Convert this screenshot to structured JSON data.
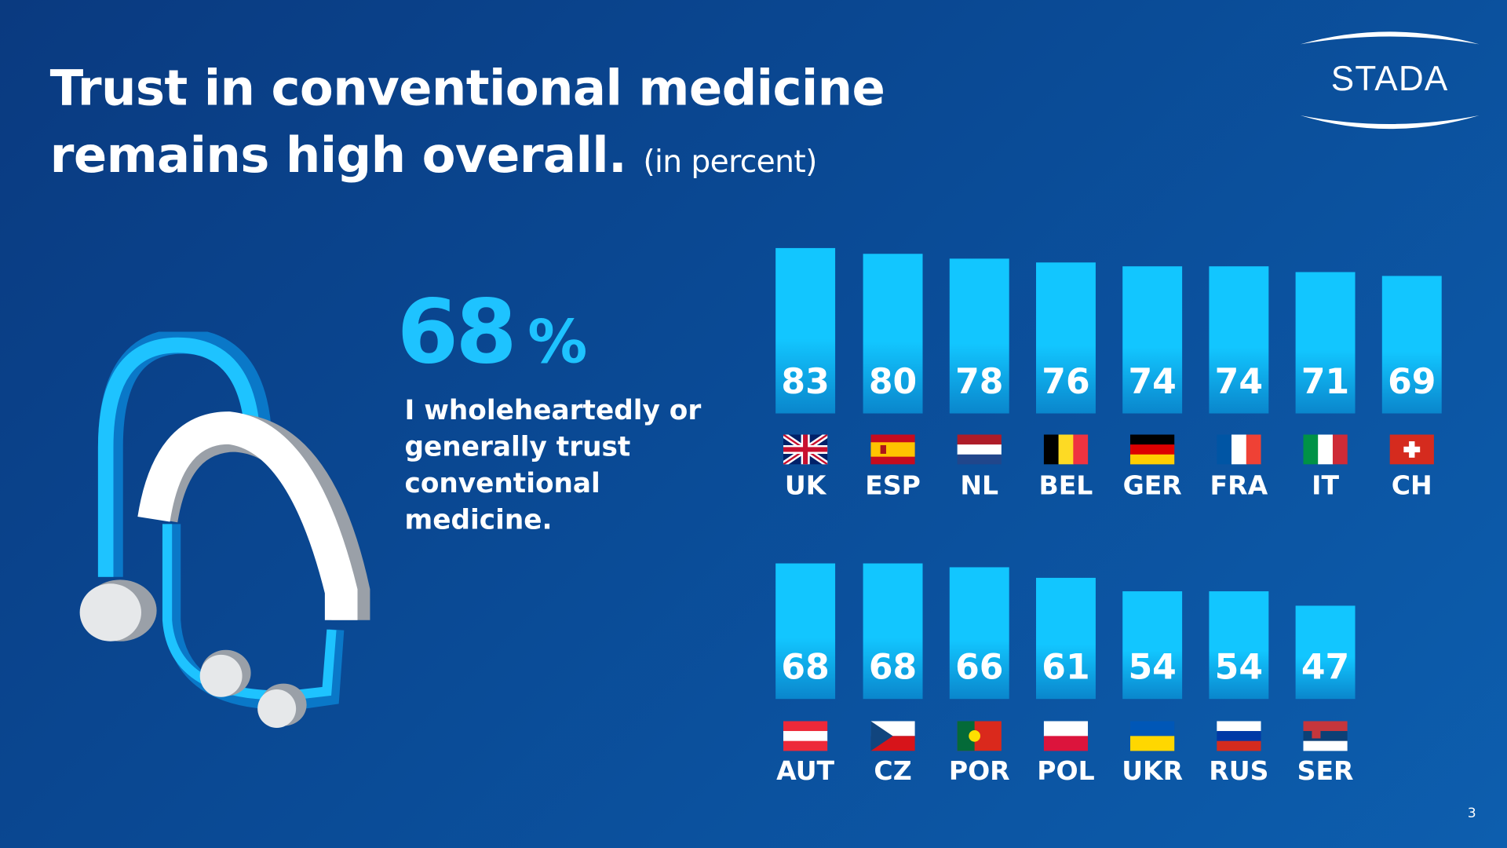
{
  "title_line1": "Trust in conventional medicine",
  "title_line2": "remains high overall.",
  "title_unit": "(in percent)",
  "logo_text": "STADA",
  "highlight": {
    "value": "68",
    "unit": "%",
    "text": "I wholeheartedly or generally trust conventional medicine."
  },
  "page_number": "3",
  "colors": {
    "bar": "#12c6ff",
    "highlight": "#1ec3ff",
    "background": "#0a4a95"
  },
  "chart_data": {
    "type": "bar",
    "rows": [
      {
        "categories": [
          "UK",
          "ESP",
          "NL",
          "BEL",
          "GER",
          "FRA",
          "IT",
          "CH"
        ],
        "values": [
          83,
          80,
          78,
          76,
          74,
          74,
          71,
          69
        ]
      },
      {
        "categories": [
          "AUT",
          "CZ",
          "POR",
          "POL",
          "UKR",
          "RUS",
          "SER"
        ],
        "values": [
          68,
          68,
          66,
          61,
          54,
          54,
          47
        ]
      }
    ],
    "ylim": [
      0,
      100
    ]
  }
}
